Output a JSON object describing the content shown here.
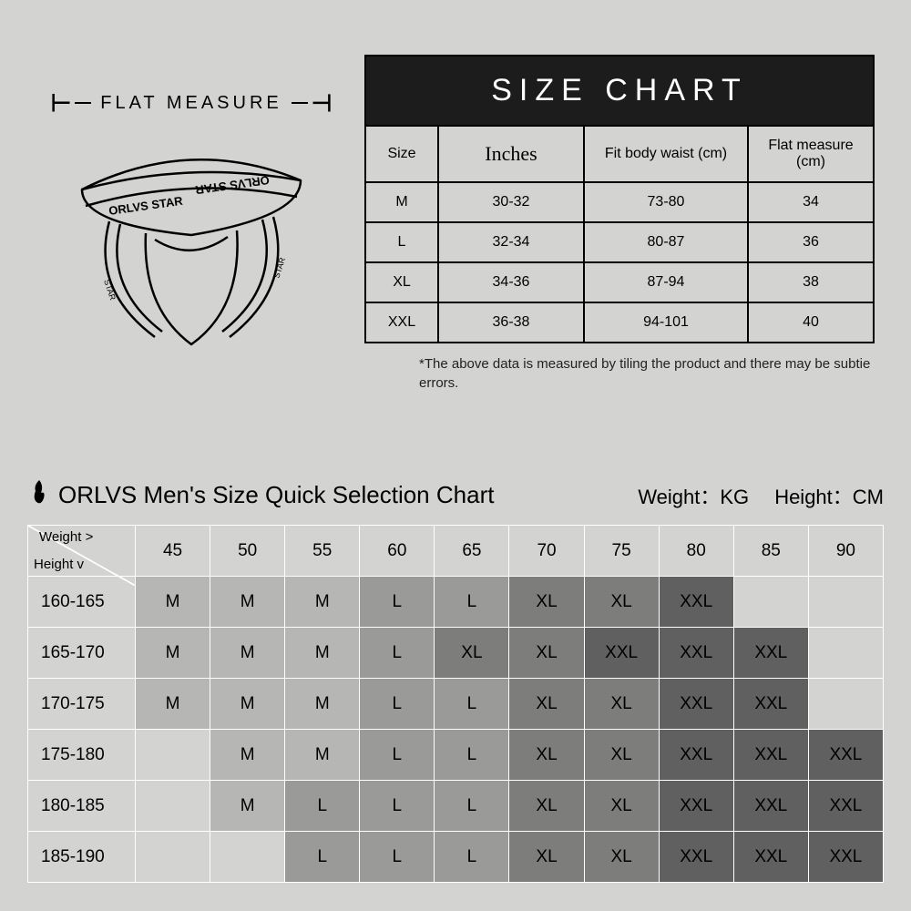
{
  "flat_measure_label": "FLAT  MEASURE",
  "product_brand_text": "ORLVS STAR",
  "size_chart": {
    "title": "SIZE CHART",
    "columns": [
      "Size",
      "Inches",
      "Fit body waist (cm)",
      "Flat measure (cm)"
    ],
    "rows": [
      [
        "M",
        "30-32",
        "73-80",
        "34"
      ],
      [
        "L",
        "32-34",
        "80-87",
        "36"
      ],
      [
        "XL",
        "34-36",
        "87-94",
        "38"
      ],
      [
        "XXL",
        "36-38",
        "94-101",
        "40"
      ]
    ],
    "note": "*The above data is measured by tiling the product and there may be subtie errors."
  },
  "selection": {
    "title": "ORLVS Men's Size Quick Selection Chart",
    "weight_label": "Weight：KG",
    "height_label": "Height：CM",
    "corner_weight": "Weight >",
    "corner_height": "Height v",
    "weights": [
      "45",
      "50",
      "55",
      "60",
      "65",
      "70",
      "75",
      "80",
      "85",
      "90"
    ],
    "heights": [
      "160-165",
      "165-170",
      "170-175",
      "175-180",
      "180-185",
      "185-190"
    ],
    "cells": [
      [
        "M",
        "M",
        "M",
        "L",
        "L",
        "XL",
        "XL",
        "XXL",
        "",
        ""
      ],
      [
        "M",
        "M",
        "M",
        "L",
        "XL",
        "XL",
        "XXL",
        "XXL",
        "XXL",
        ""
      ],
      [
        "M",
        "M",
        "M",
        "L",
        "L",
        "XL",
        "XL",
        "XXL",
        "XXL",
        ""
      ],
      [
        "",
        "M",
        "M",
        "L",
        "L",
        "XL",
        "XL",
        "XXL",
        "XXL",
        "XXL"
      ],
      [
        "",
        "M",
        "L",
        "L",
        "L",
        "XL",
        "XL",
        "XXL",
        "XXL",
        "XXL"
      ],
      [
        "",
        "",
        "L",
        "L",
        "L",
        "XL",
        "XL",
        "XXL",
        "XXL",
        "XXL"
      ]
    ],
    "shade": {
      "": "s-none",
      "M": "s-m",
      "L": "s-l",
      "XL": "s-xl",
      "XXL": "s-xxl"
    }
  }
}
